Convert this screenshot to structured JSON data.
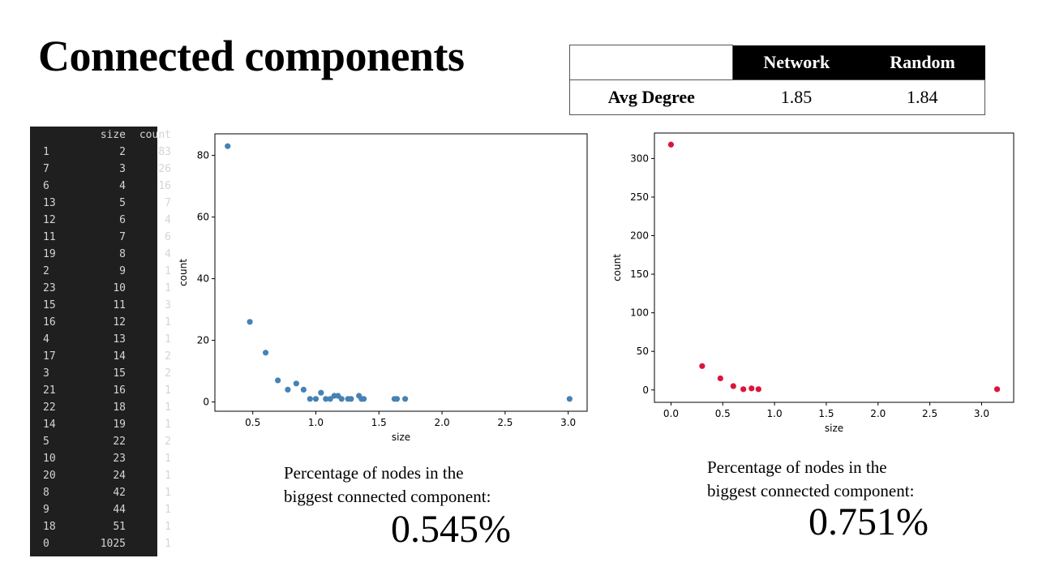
{
  "title": "Connected components",
  "degree_table": {
    "col_network": "Network",
    "col_random": "Random",
    "row_label": "Avg Degree",
    "network_value": "1.85",
    "random_value": "1.84"
  },
  "dataframe": {
    "headers": [
      "",
      "size",
      "count"
    ],
    "rows": [
      [
        "1",
        "2",
        "83"
      ],
      [
        "7",
        "3",
        "26"
      ],
      [
        "6",
        "4",
        "16"
      ],
      [
        "13",
        "5",
        "7"
      ],
      [
        "12",
        "6",
        "4"
      ],
      [
        "11",
        "7",
        "6"
      ],
      [
        "19",
        "8",
        "4"
      ],
      [
        "2",
        "9",
        "1"
      ],
      [
        "23",
        "10",
        "1"
      ],
      [
        "15",
        "11",
        "3"
      ],
      [
        "16",
        "12",
        "1"
      ],
      [
        "4",
        "13",
        "1"
      ],
      [
        "17",
        "14",
        "2"
      ],
      [
        "3",
        "15",
        "2"
      ],
      [
        "21",
        "16",
        "1"
      ],
      [
        "22",
        "18",
        "1"
      ],
      [
        "14",
        "19",
        "1"
      ],
      [
        "5",
        "22",
        "2"
      ],
      [
        "10",
        "23",
        "1"
      ],
      [
        "20",
        "24",
        "1"
      ],
      [
        "8",
        "42",
        "1"
      ],
      [
        "9",
        "44",
        "1"
      ],
      [
        "18",
        "51",
        "1"
      ],
      [
        "0",
        "1025",
        "1"
      ]
    ]
  },
  "chart_data": [
    {
      "type": "scatter",
      "color": "#4682b4",
      "xlabel": "size",
      "ylabel": "count",
      "xlim": [
        0.2,
        3.15
      ],
      "ylim": [
        -3,
        87
      ],
      "xticks": [
        0.5,
        1.0,
        1.5,
        2.0,
        2.5,
        3.0
      ],
      "xtick_labels": [
        "0.5",
        "1.0",
        "1.5",
        "2.0",
        "2.5",
        "3.0"
      ],
      "yticks": [
        0,
        20,
        40,
        60,
        80
      ],
      "ytick_labels": [
        "0",
        "20",
        "40",
        "60",
        "80"
      ],
      "x": [
        0.301,
        0.477,
        0.602,
        0.699,
        0.778,
        0.845,
        0.903,
        0.954,
        1.0,
        1.041,
        1.079,
        1.114,
        1.146,
        1.176,
        1.204,
        1.255,
        1.279,
        1.342,
        1.362,
        1.38,
        1.623,
        1.643,
        1.708,
        3.011
      ],
      "y": [
        83,
        26,
        16,
        7,
        4,
        6,
        4,
        1,
        1,
        3,
        1,
        1,
        2,
        2,
        1,
        1,
        1,
        2,
        1,
        1,
        1,
        1,
        1,
        1
      ]
    },
    {
      "type": "scatter",
      "color": "#dc143c",
      "xlabel": "size",
      "ylabel": "count",
      "xlim": [
        -0.16,
        3.31
      ],
      "ylim": [
        -16,
        333
      ],
      "xticks": [
        0.0,
        0.5,
        1.0,
        1.5,
        2.0,
        2.5,
        3.0
      ],
      "xtick_labels": [
        "0.0",
        "0.5",
        "1.0",
        "1.5",
        "2.0",
        "2.5",
        "3.0"
      ],
      "yticks": [
        0,
        50,
        100,
        150,
        200,
        250,
        300
      ],
      "ytick_labels": [
        "0",
        "50",
        "100",
        "150",
        "200",
        "250",
        "300"
      ],
      "x": [
        0.0,
        0.301,
        0.477,
        0.602,
        0.699,
        0.778,
        0.845,
        3.15
      ],
      "y": [
        318,
        31,
        15,
        5,
        1,
        2,
        1,
        1
      ]
    }
  ],
  "stats": {
    "left_label": "Percentage of nodes in the biggest connected component:",
    "left_value": "0.545%",
    "right_label": "Percentage of nodes in the biggest connected component:",
    "right_value": "0.751%"
  }
}
